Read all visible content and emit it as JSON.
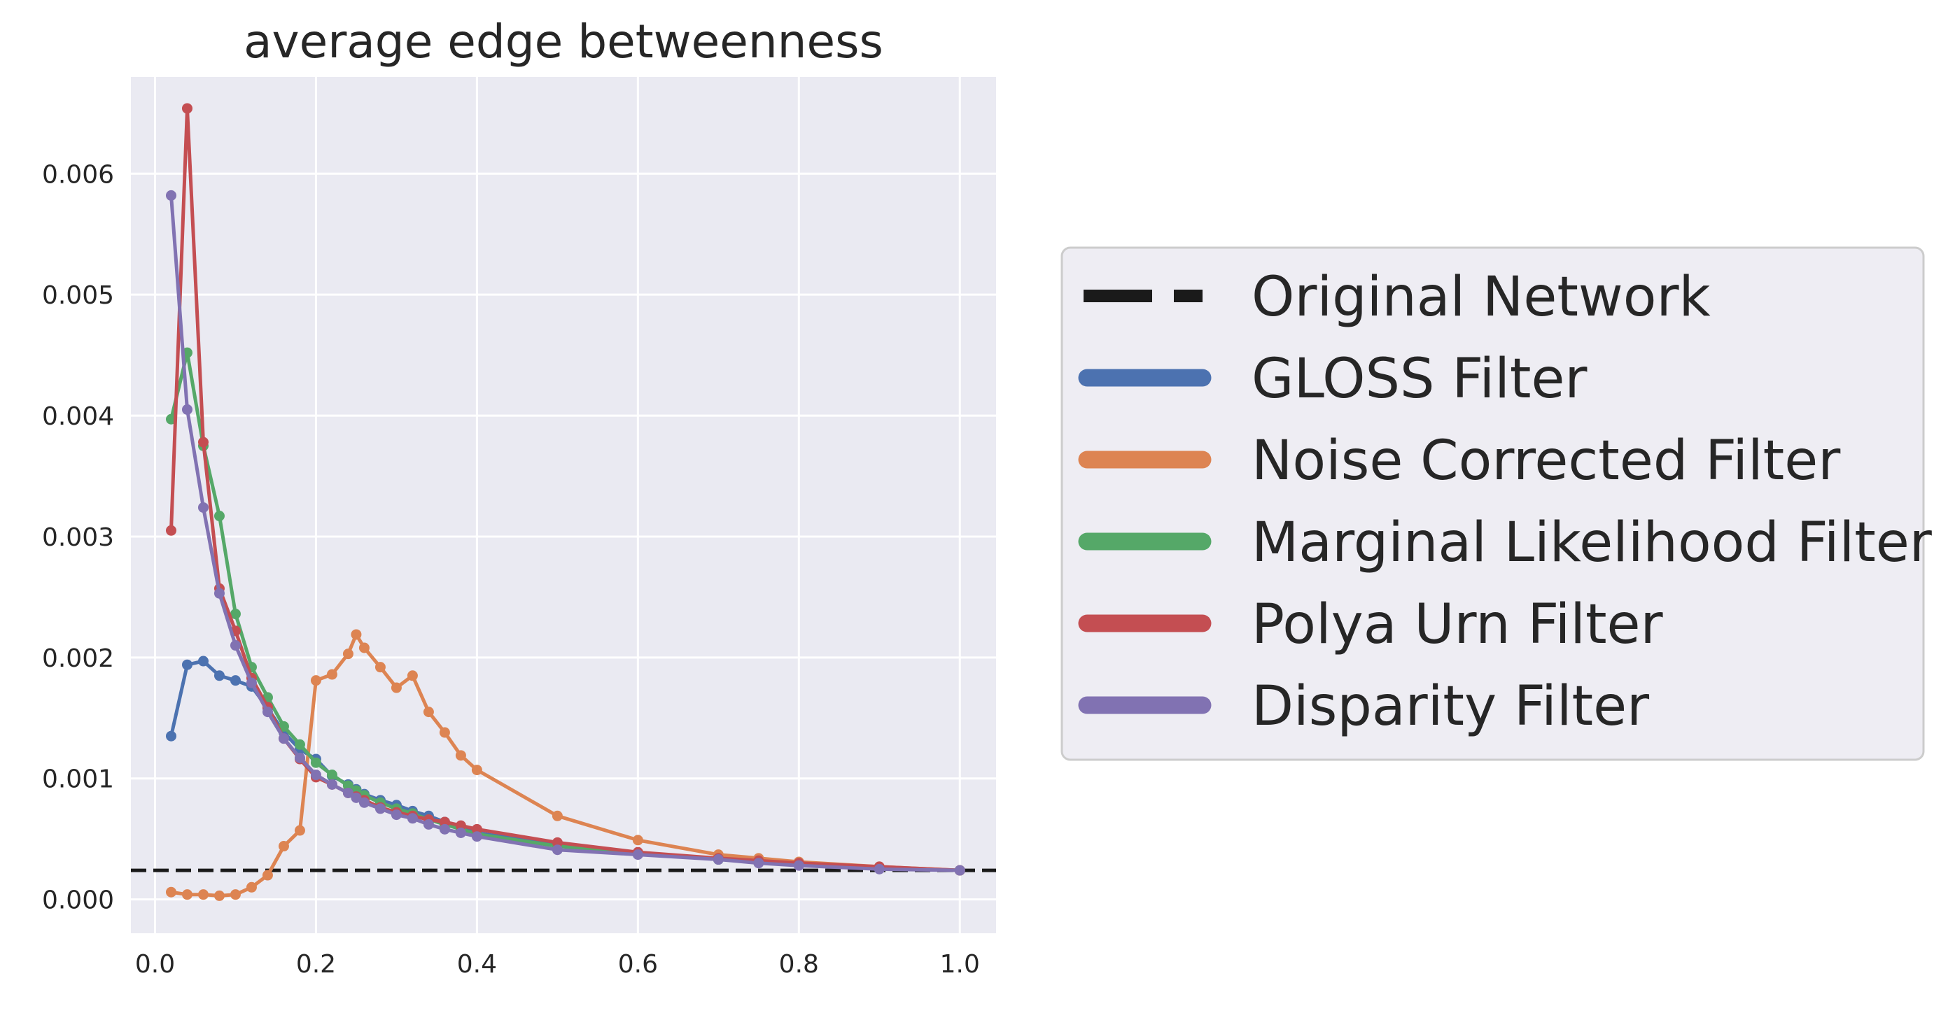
{
  "chart_data": {
    "type": "line",
    "title": "average edge betweenness",
    "xlabel": "",
    "ylabel": "",
    "xlim": [
      -0.03,
      1.045
    ],
    "ylim": [
      -0.00028,
      0.0068
    ],
    "xticks": [
      0.0,
      0.2,
      0.4,
      0.6,
      0.8,
      1.0
    ],
    "xtick_labels": [
      "0.0",
      "0.2",
      "0.4",
      "0.6",
      "0.8",
      "1.0"
    ],
    "yticks": [
      0.0,
      0.001,
      0.002,
      0.003,
      0.004,
      0.005,
      0.006
    ],
    "ytick_labels": [
      "0.000",
      "0.001",
      "0.002",
      "0.003",
      "0.004",
      "0.005",
      "0.006"
    ],
    "grid": true,
    "legend_placement": "outside-right",
    "reference_line": {
      "name": "Original Network",
      "y": 0.00024,
      "color": "#1a1a1a",
      "style": "dashed"
    },
    "series": [
      {
        "name": "GLOSS Filter",
        "color": "#4c72b0",
        "x": [
          0.02,
          0.04,
          0.06,
          0.08,
          0.1,
          0.12,
          0.14,
          0.16,
          0.18,
          0.2,
          0.22,
          0.24,
          0.25,
          0.26,
          0.28,
          0.3,
          0.32,
          0.34,
          0.36,
          0.38,
          0.4,
          0.5,
          0.6,
          0.7,
          0.75,
          0.8,
          0.9,
          1.0
        ],
        "y": [
          0.00135,
          0.00194,
          0.00197,
          0.00185,
          0.00181,
          0.00176,
          0.00158,
          0.00138,
          0.00124,
          0.00116,
          0.00102,
          0.00095,
          0.00091,
          0.00087,
          0.00082,
          0.00078,
          0.00073,
          0.00069,
          0.00064,
          0.0006,
          0.00055,
          0.00045,
          0.00038,
          0.00033,
          0.00031,
          0.00029,
          0.00026,
          0.00024
        ]
      },
      {
        "name": "Noise Corrected Filter",
        "color": "#dd8452",
        "x": [
          0.02,
          0.04,
          0.06,
          0.08,
          0.1,
          0.12,
          0.14,
          0.16,
          0.18,
          0.2,
          0.22,
          0.24,
          0.25,
          0.26,
          0.28,
          0.3,
          0.32,
          0.34,
          0.36,
          0.38,
          0.4,
          0.5,
          0.6,
          0.7,
          0.75,
          0.8,
          0.9,
          1.0
        ],
        "y": [
          6e-05,
          4e-05,
          4e-05,
          3e-05,
          4e-05,
          0.0001,
          0.0002,
          0.00044,
          0.00057,
          0.00181,
          0.00186,
          0.00203,
          0.00219,
          0.00208,
          0.00192,
          0.00175,
          0.00185,
          0.00155,
          0.00138,
          0.00119,
          0.00107,
          0.00069,
          0.00049,
          0.00037,
          0.00034,
          0.00031,
          0.00027,
          0.00024
        ]
      },
      {
        "name": "Marginal Likelihood Filter",
        "color": "#55a868",
        "x": [
          0.02,
          0.04,
          0.06,
          0.08,
          0.1,
          0.12,
          0.14,
          0.16,
          0.18,
          0.2,
          0.22,
          0.24,
          0.25,
          0.26,
          0.28,
          0.3,
          0.32,
          0.34,
          0.36,
          0.38,
          0.4,
          0.5,
          0.6,
          0.7,
          0.75,
          0.8,
          0.9,
          1.0
        ],
        "y": [
          0.00397,
          0.00452,
          0.00375,
          0.00317,
          0.00236,
          0.00192,
          0.00167,
          0.00143,
          0.00128,
          0.00113,
          0.00103,
          0.00094,
          0.0009,
          0.00086,
          0.0008,
          0.00075,
          0.00071,
          0.00066,
          0.00062,
          0.00058,
          0.00054,
          0.00044,
          0.00038,
          0.00033,
          0.00031,
          0.00029,
          0.00026,
          0.00024
        ]
      },
      {
        "name": "Polya Urn Filter",
        "color": "#c44e52",
        "x": [
          0.02,
          0.04,
          0.06,
          0.08,
          0.1,
          0.12,
          0.14,
          0.16,
          0.18,
          0.2,
          0.22,
          0.24,
          0.25,
          0.26,
          0.28,
          0.3,
          0.32,
          0.34,
          0.36,
          0.38,
          0.4,
          0.5,
          0.6,
          0.7,
          0.75,
          0.8,
          0.9,
          1.0
        ],
        "y": [
          0.00305,
          0.00654,
          0.00378,
          0.00257,
          0.00222,
          0.00183,
          0.00159,
          0.00133,
          0.00116,
          0.00101,
          0.00095,
          0.00088,
          0.00085,
          0.00082,
          0.00076,
          0.00072,
          0.00069,
          0.00066,
          0.00064,
          0.00061,
          0.00058,
          0.00047,
          0.00039,
          0.00034,
          0.00032,
          0.0003,
          0.00027,
          0.00024
        ]
      },
      {
        "name": "Disparity Filter",
        "color": "#8172b2",
        "x": [
          0.02,
          0.04,
          0.06,
          0.08,
          0.1,
          0.12,
          0.14,
          0.16,
          0.18,
          0.2,
          0.22,
          0.24,
          0.25,
          0.26,
          0.28,
          0.3,
          0.32,
          0.34,
          0.36,
          0.38,
          0.4,
          0.5,
          0.6,
          0.7,
          0.75,
          0.8,
          0.9,
          1.0
        ],
        "y": [
          0.00582,
          0.00405,
          0.00324,
          0.00253,
          0.0021,
          0.00179,
          0.00155,
          0.00133,
          0.00117,
          0.00103,
          0.00095,
          0.00088,
          0.00084,
          0.0008,
          0.00075,
          0.0007,
          0.00067,
          0.00062,
          0.00058,
          0.00055,
          0.00052,
          0.00041,
          0.00037,
          0.00033,
          0.0003,
          0.00028,
          0.00025,
          0.00024
        ]
      }
    ]
  }
}
